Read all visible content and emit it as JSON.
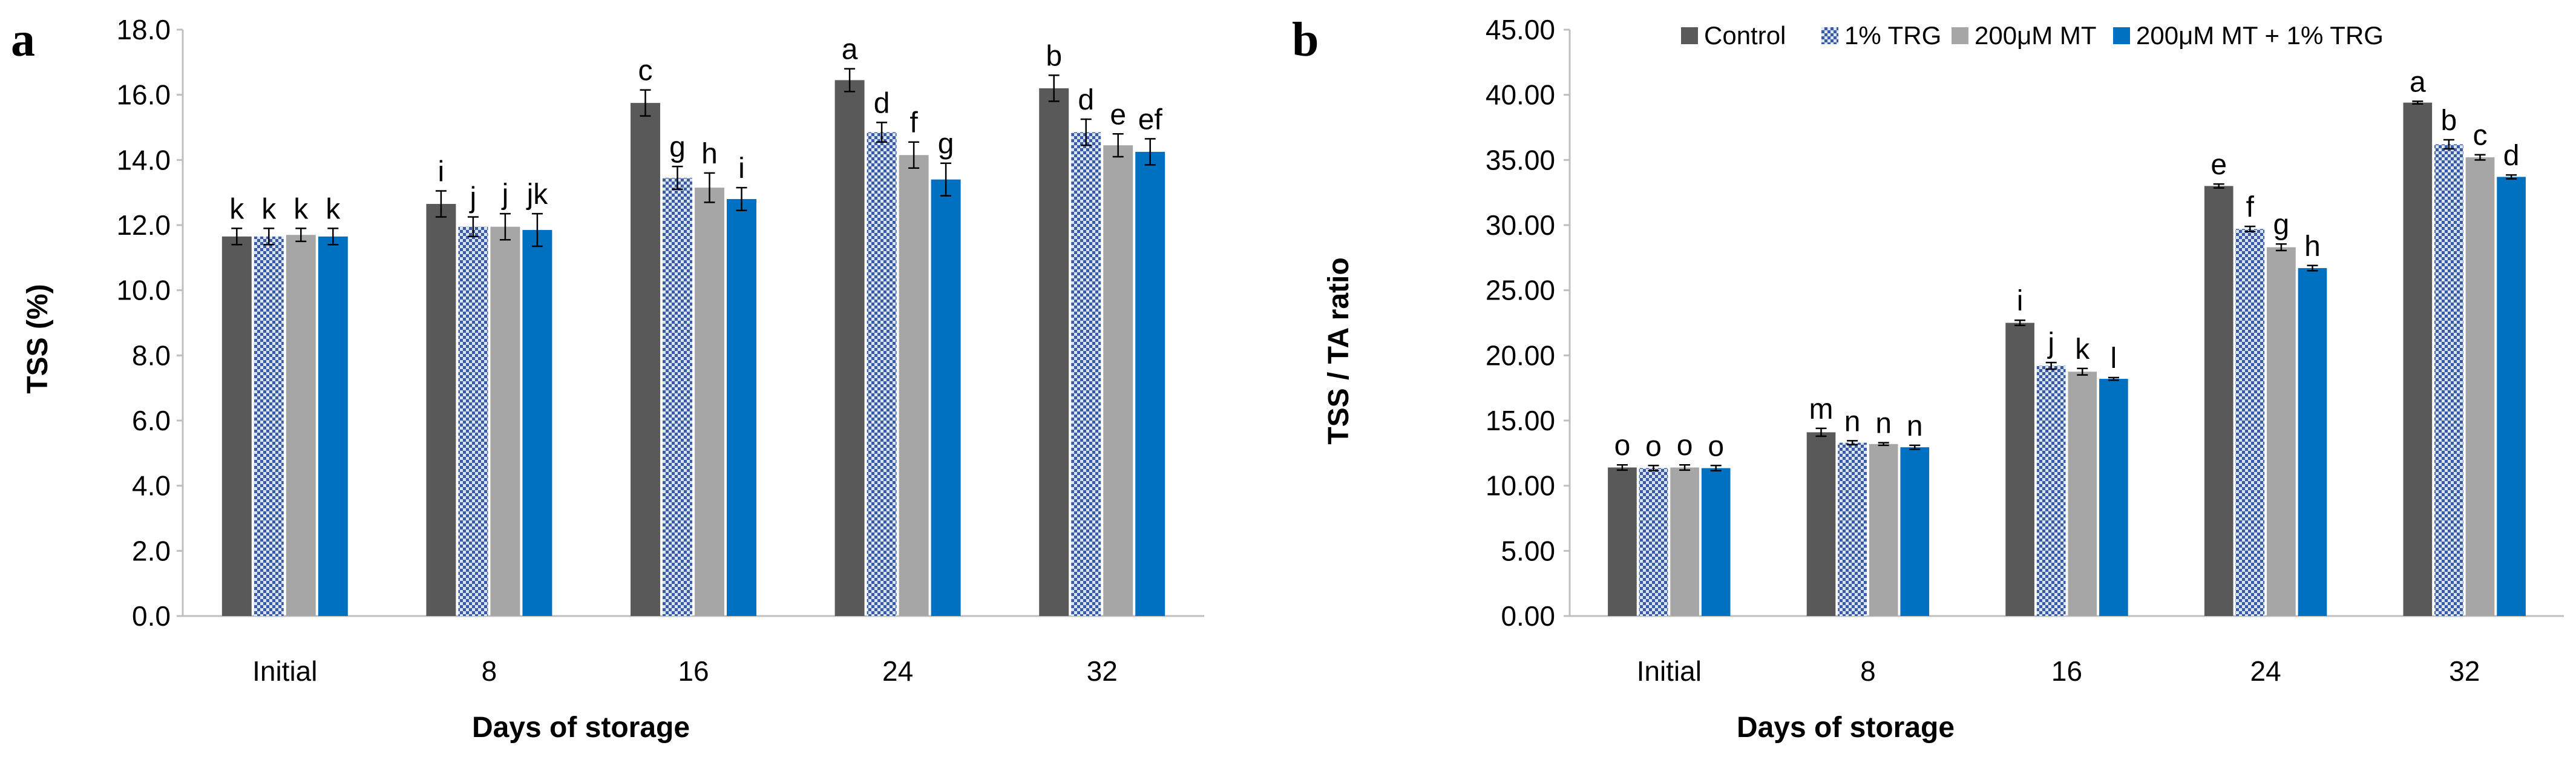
{
  "chart_data": [
    {
      "type": "bar",
      "panel_label": "a",
      "title": "",
      "xlabel": "Days of storage",
      "ylabel": "TSS (%)",
      "ylim": [
        0,
        18
      ],
      "ytick_step": 2,
      "ytick_labels": [
        "0.0",
        "2.0",
        "4.0",
        "6.0",
        "8.0",
        "10.0",
        "12.0",
        "14.0",
        "16.0",
        "18.0"
      ],
      "categories": [
        "Initial",
        "8",
        "16",
        "24",
        "32"
      ],
      "series": [
        {
          "name": "Control",
          "values": [
            11.65,
            12.65,
            15.75,
            16.45,
            16.2
          ],
          "errors": [
            0.25,
            0.4,
            0.4,
            0.35,
            0.4
          ],
          "letters": [
            "k",
            "i",
            "c",
            "a",
            "b"
          ]
        },
        {
          "name": "1% TRG",
          "values": [
            11.65,
            11.95,
            13.45,
            14.85,
            14.85
          ],
          "errors": [
            0.25,
            0.3,
            0.35,
            0.3,
            0.4
          ],
          "letters": [
            "k",
            "j",
            "g",
            "d",
            "d"
          ]
        },
        {
          "name": "200μM MT",
          "values": [
            11.7,
            11.95,
            13.15,
            14.15,
            14.45
          ],
          "errors": [
            0.2,
            0.4,
            0.45,
            0.4,
            0.35
          ],
          "letters": [
            "k",
            "j",
            "h",
            "f",
            "e"
          ]
        },
        {
          "name": "200μM MT + 1% TRG",
          "values": [
            11.65,
            11.85,
            12.8,
            13.4,
            14.25
          ],
          "errors": [
            0.25,
            0.5,
            0.35,
            0.5,
            0.4
          ],
          "letters": [
            "k",
            "jk",
            "i",
            "g",
            "ef"
          ]
        }
      ],
      "grid": false,
      "legend": "none"
    },
    {
      "type": "bar",
      "panel_label": "b",
      "title": "",
      "xlabel": "Days of storage",
      "ylabel": "TSS / TA ratio",
      "ylim": [
        0,
        45
      ],
      "ytick_step": 5,
      "ytick_labels": [
        "0.00",
        "5.00",
        "10.00",
        "15.00",
        "20.00",
        "25.00",
        "30.00",
        "35.00",
        "40.00",
        "45.00"
      ],
      "categories": [
        "Initial",
        "8",
        "16",
        "24",
        "32"
      ],
      "series": [
        {
          "name": "Control",
          "values": [
            11.4,
            14.1,
            22.5,
            33.0,
            39.4
          ],
          "errors": [
            0.2,
            0.3,
            0.2,
            0.15,
            0.1
          ],
          "letters": [
            "o",
            "m",
            "i",
            "e",
            "a"
          ]
        },
        {
          "name": "1% TRG",
          "values": [
            11.35,
            13.3,
            19.2,
            29.7,
            36.2
          ],
          "errors": [
            0.2,
            0.15,
            0.25,
            0.2,
            0.35
          ],
          "letters": [
            "o",
            "n",
            "j",
            "f",
            "b"
          ]
        },
        {
          "name": "200μM MT",
          "values": [
            11.4,
            13.2,
            18.75,
            28.3,
            35.2
          ],
          "errors": [
            0.2,
            0.1,
            0.25,
            0.25,
            0.2
          ],
          "letters": [
            "o",
            "n",
            "k",
            "g",
            "c"
          ]
        },
        {
          "name": "200μM MT + 1% TRG",
          "values": [
            11.35,
            12.95,
            18.2,
            26.7,
            33.7
          ],
          "errors": [
            0.2,
            0.15,
            0.1,
            0.2,
            0.15
          ],
          "letters": [
            "o",
            "n",
            "l",
            "h",
            "d"
          ]
        }
      ],
      "grid": false,
      "legend": "top-right"
    }
  ],
  "legend": {
    "entries": [
      "Control",
      "1% TRG",
      "200μM MT",
      "200μM MT + 1% TRG"
    ]
  },
  "colors": {
    "Control": "#595959",
    "1% TRG": "#3a5ba8",
    "200μM MT": "#a6a6a6",
    "200μM MT + 1% TRG": "#0070c0",
    "axis": "#bfbfbf",
    "error_bar": "#000000"
  }
}
